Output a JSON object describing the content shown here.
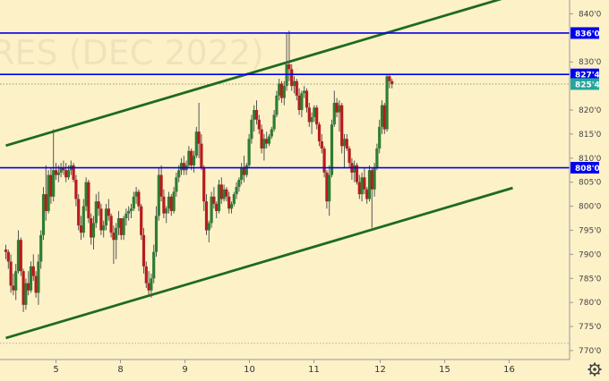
{
  "chart_data": {
    "type": "candlestick",
    "title": "",
    "watermark": "RES (DEC 2022)",
    "y_axis": {
      "position": "right",
      "ylim": [
        768.5,
        842.5
      ],
      "ticks": [
        {
          "value": 840,
          "label": "840'0"
        },
        {
          "value": 830,
          "label": "830'0"
        },
        {
          "value": 820,
          "label": "820'0"
        },
        {
          "value": 815,
          "label": "815'0"
        },
        {
          "value": 810,
          "label": "810'0"
        },
        {
          "value": 805,
          "label": "805'0"
        },
        {
          "value": 800,
          "label": "800'0"
        },
        {
          "value": 795,
          "label": "795'0"
        },
        {
          "value": 790,
          "label": "790'0"
        },
        {
          "value": 785,
          "label": "785'0"
        },
        {
          "value": 780,
          "label": "780'0"
        },
        {
          "value": 775,
          "label": "775'0"
        },
        {
          "value": 770,
          "label": "770'0"
        }
      ]
    },
    "x_axis": {
      "range": [
        0,
        28.3
      ],
      "ticks": [
        {
          "value": 2.8,
          "label": "5"
        },
        {
          "value": 6.4,
          "label": "8"
        },
        {
          "value": 10.0,
          "label": "9"
        },
        {
          "value": 13.6,
          "label": "10"
        },
        {
          "value": 17.2,
          "label": "11"
        },
        {
          "value": 20.9,
          "label": "12"
        },
        {
          "value": 24.5,
          "label": "15"
        },
        {
          "value": 28.1,
          "label": "16"
        }
      ]
    },
    "horizontal_levels": [
      {
        "value": 836.0,
        "label": "836'0",
        "color": "#0000ee"
      },
      {
        "value": 827.4,
        "label": "827'4",
        "color": "#0000ee"
      },
      {
        "value": 808.0,
        "label": "808'0",
        "color": "#0000ee"
      }
    ],
    "last_price": {
      "value": 825.4,
      "label": "825'4",
      "color": "#26a69a"
    },
    "dotted_levels": [
      825.4,
      771.5
    ],
    "trend_lines": [
      {
        "x1": 0,
        "y1": 812.6,
        "x2": 28.3,
        "y2": 843.8,
        "color": "#1e6b1e"
      },
      {
        "x1": 0,
        "y1": 772.6,
        "x2": 28.3,
        "y2": 803.8,
        "color": "#1e6b1e"
      }
    ],
    "colors": {
      "up": "#2e7d32",
      "down": "#b71c1c",
      "wick": "#555555"
    },
    "candles": [
      [
        0.0,
        791.0,
        792.0,
        789.0,
        790.5
      ],
      [
        0.14,
        790.5,
        791.0,
        787.0,
        788.5
      ],
      [
        0.28,
        788.5,
        790.0,
        782.0,
        783.5
      ],
      [
        0.42,
        783.5,
        786.0,
        781.5,
        782.5
      ],
      [
        0.56,
        782.5,
        788.0,
        780.5,
        786.5
      ],
      [
        0.7,
        786.5,
        795.0,
        786.0,
        793.0
      ],
      [
        0.84,
        793.0,
        793.5,
        785.5,
        786.5
      ],
      [
        0.98,
        786.5,
        787.0,
        778.0,
        779.5
      ],
      [
        1.12,
        779.5,
        785.0,
        778.5,
        784.0
      ],
      [
        1.26,
        784.0,
        786.5,
        781.5,
        782.5
      ],
      [
        1.4,
        782.5,
        788.5,
        782.0,
        787.5
      ],
      [
        1.54,
        787.5,
        790.0,
        784.5,
        785.5
      ],
      [
        1.68,
        785.5,
        786.5,
        781.0,
        782.0
      ],
      [
        1.82,
        782.0,
        790.0,
        779.5,
        788.5
      ],
      [
        1.96,
        788.5,
        795.0,
        787.0,
        794.0
      ],
      [
        2.1,
        794.0,
        804.0,
        793.0,
        802.5
      ],
      [
        2.24,
        802.5,
        808.5,
        797.0,
        799.0
      ],
      [
        2.38,
        799.0,
        807.5,
        798.5,
        806.5
      ],
      [
        2.52,
        806.5,
        808.0,
        800.5,
        802.0
      ],
      [
        2.66,
        802.0,
        816.0,
        801.0,
        807.5
      ],
      [
        2.8,
        807.5,
        809.0,
        805.5,
        806.5
      ],
      [
        2.94,
        806.5,
        808.5,
        805.0,
        807.0
      ],
      [
        3.08,
        807.0,
        809.0,
        806.0,
        808.0
      ],
      [
        3.22,
        808.0,
        809.5,
        806.5,
        807.5
      ],
      [
        3.36,
        807.5,
        809.0,
        805.0,
        806.0
      ],
      [
        3.5,
        806.0,
        808.5,
        805.5,
        807.5
      ],
      [
        3.64,
        807.5,
        809.5,
        806.5,
        808.5
      ],
      [
        3.78,
        808.5,
        809.0,
        805.0,
        805.5
      ],
      [
        3.92,
        805.5,
        806.5,
        800.0,
        801.5
      ],
      [
        4.06,
        801.5,
        802.5,
        795.0,
        796.0
      ],
      [
        4.2,
        796.0,
        798.0,
        793.0,
        794.5
      ],
      [
        4.34,
        794.5,
        801.5,
        793.5,
        800.0
      ],
      [
        4.48,
        800.0,
        806.0,
        799.0,
        805.0
      ],
      [
        4.62,
        805.0,
        805.5,
        796.5,
        797.5
      ],
      [
        4.76,
        797.5,
        798.5,
        792.0,
        793.5
      ],
      [
        4.9,
        793.5,
        798.0,
        791.0,
        796.5
      ],
      [
        5.04,
        796.5,
        802.5,
        795.5,
        801.0
      ],
      [
        5.18,
        801.0,
        803.0,
        798.0,
        799.5
      ],
      [
        5.32,
        799.5,
        800.5,
        794.0,
        795.0
      ],
      [
        5.46,
        795.0,
        797.0,
        793.5,
        796.0
      ],
      [
        5.6,
        796.0,
        800.5,
        795.0,
        799.5
      ],
      [
        5.74,
        799.5,
        801.5,
        797.0,
        798.0
      ],
      [
        5.88,
        798.0,
        798.5,
        793.5,
        794.5
      ],
      [
        6.02,
        794.5,
        796.0,
        788.0,
        793.0
      ],
      [
        6.16,
        793.0,
        796.5,
        789.0,
        795.5
      ],
      [
        6.3,
        795.5,
        799.0,
        794.0,
        797.5
      ],
      [
        6.44,
        797.5,
        797.5,
        793.0,
        794.0
      ],
      [
        6.58,
        794.0,
        798.0,
        793.0,
        797.5
      ],
      [
        6.72,
        797.5,
        799.5,
        796.0,
        798.5
      ],
      [
        6.86,
        798.5,
        800.0,
        797.0,
        799.0
      ],
      [
        7.0,
        799.0,
        800.5,
        797.5,
        799.5
      ],
      [
        7.14,
        799.5,
        803.0,
        799.0,
        802.0
      ],
      [
        7.28,
        802.0,
        804.0,
        800.5,
        803.0
      ],
      [
        7.42,
        803.0,
        803.5,
        799.0,
        800.0
      ],
      [
        7.56,
        800.0,
        800.5,
        793.0,
        794.0
      ],
      [
        7.7,
        794.0,
        795.5,
        786.0,
        787.5
      ],
      [
        7.84,
        787.5,
        788.5,
        783.0,
        784.0
      ],
      [
        7.98,
        784.0,
        786.5,
        781.5,
        782.5
      ],
      [
        8.12,
        782.5,
        786.0,
        781.0,
        785.0
      ],
      [
        8.26,
        785.0,
        792.0,
        784.0,
        790.5
      ],
      [
        8.4,
        790.5,
        800.0,
        789.5,
        798.0
      ],
      [
        8.54,
        798.0,
        808.0,
        797.0,
        806.5
      ],
      [
        8.68,
        806.5,
        808.5,
        801.0,
        802.0
      ],
      [
        8.82,
        802.0,
        803.5,
        797.5,
        798.5
      ],
      [
        8.96,
        798.5,
        800.0,
        796.5,
        799.5
      ],
      [
        9.1,
        799.5,
        803.0,
        798.5,
        802.0
      ],
      [
        9.24,
        802.0,
        802.5,
        798.0,
        799.0
      ],
      [
        9.38,
        799.0,
        804.0,
        798.5,
        803.0
      ],
      [
        9.52,
        803.0,
        807.0,
        802.0,
        806.0
      ],
      [
        9.66,
        806.0,
        808.5,
        805.0,
        807.5
      ],
      [
        9.8,
        807.5,
        810.0,
        806.5,
        809.0
      ],
      [
        9.94,
        809.0,
        810.5,
        806.5,
        807.5
      ],
      [
        10.08,
        807.5,
        809.5,
        806.5,
        808.5
      ],
      [
        10.22,
        808.5,
        812.5,
        808.0,
        811.5
      ],
      [
        10.36,
        811.5,
        812.0,
        807.5,
        808.5
      ],
      [
        10.5,
        808.5,
        811.5,
        807.0,
        810.5
      ],
      [
        10.64,
        810.5,
        816.5,
        810.0,
        815.5
      ],
      [
        10.78,
        815.5,
        821.5,
        810.0,
        813.0
      ],
      [
        10.92,
        813.0,
        815.0,
        807.5,
        808.0
      ],
      [
        11.06,
        808.0,
        808.5,
        799.0,
        801.0
      ],
      [
        11.2,
        801.0,
        802.5,
        794.0,
        795.0
      ],
      [
        11.34,
        795.0,
        797.0,
        792.5,
        796.5
      ],
      [
        11.48,
        796.5,
        803.0,
        795.5,
        802.0
      ],
      [
        11.62,
        802.0,
        804.0,
        799.5,
        800.5
      ],
      [
        11.76,
        800.5,
        801.0,
        797.5,
        799.0
      ],
      [
        11.9,
        799.0,
        805.5,
        798.5,
        804.5
      ],
      [
        12.04,
        804.5,
        806.0,
        800.5,
        801.5
      ],
      [
        12.18,
        801.5,
        804.5,
        801.0,
        803.5
      ],
      [
        12.32,
        803.5,
        804.0,
        801.0,
        802.0
      ],
      [
        12.46,
        802.0,
        803.0,
        798.5,
        799.5
      ],
      [
        12.6,
        799.5,
        801.0,
        798.5,
        800.5
      ],
      [
        12.74,
        800.5,
        803.0,
        800.0,
        802.5
      ],
      [
        12.88,
        802.5,
        805.0,
        801.5,
        804.0
      ],
      [
        13.02,
        804.0,
        806.0,
        803.0,
        805.5
      ],
      [
        13.16,
        805.5,
        809.0,
        804.5,
        808.0
      ],
      [
        13.3,
        808.0,
        810.5,
        805.0,
        806.5
      ],
      [
        13.44,
        806.5,
        809.0,
        806.0,
        808.5
      ],
      [
        13.58,
        808.5,
        815.0,
        808.0,
        814.0
      ],
      [
        13.72,
        814.0,
        819.0,
        813.0,
        818.0
      ],
      [
        13.86,
        818.0,
        821.0,
        815.5,
        820.0
      ],
      [
        14.0,
        820.0,
        822.0,
        817.0,
        818.0
      ],
      [
        14.14,
        818.0,
        819.0,
        815.0,
        816.0
      ],
      [
        14.28,
        816.0,
        817.0,
        811.0,
        812.0
      ],
      [
        14.42,
        812.0,
        815.0,
        809.5,
        814.0
      ],
      [
        14.56,
        814.0,
        815.5,
        812.0,
        813.0
      ],
      [
        14.7,
        813.0,
        815.0,
        812.5,
        814.5
      ],
      [
        14.84,
        814.5,
        816.5,
        814.0,
        816.0
      ],
      [
        14.98,
        816.0,
        820.0,
        815.5,
        819.0
      ],
      [
        15.12,
        819.0,
        824.0,
        818.5,
        823.0
      ],
      [
        15.26,
        823.0,
        826.5,
        822.0,
        825.5
      ],
      [
        15.4,
        825.5,
        826.0,
        821.5,
        822.5
      ],
      [
        15.54,
        822.5,
        826.0,
        821.0,
        825.0
      ],
      [
        15.68,
        825.0,
        836.0,
        824.0,
        829.5
      ],
      [
        15.82,
        829.5,
        836.5,
        826.0,
        828.5
      ],
      [
        15.96,
        828.5,
        829.5,
        824.0,
        825.0
      ],
      [
        16.1,
        825.0,
        827.0,
        823.5,
        826.0
      ],
      [
        16.24,
        826.0,
        826.5,
        822.0,
        823.0
      ],
      [
        16.38,
        823.0,
        824.5,
        819.0,
        820.0
      ],
      [
        16.52,
        820.0,
        824.0,
        818.5,
        823.5
      ],
      [
        16.66,
        823.5,
        825.0,
        822.5,
        824.0
      ],
      [
        16.8,
        824.0,
        824.5,
        819.5,
        820.5
      ],
      [
        16.94,
        820.5,
        821.5,
        816.5,
        817.5
      ],
      [
        17.08,
        817.5,
        819.5,
        815.0,
        818.5
      ],
      [
        17.22,
        818.5,
        821.0,
        817.5,
        820.5
      ],
      [
        17.36,
        820.5,
        821.0,
        816.0,
        817.0
      ],
      [
        17.5,
        817.0,
        817.5,
        812.5,
        813.5
      ],
      [
        17.64,
        813.5,
        815.0,
        811.0,
        812.0
      ],
      [
        17.78,
        812.0,
        812.5,
        806.0,
        807.0
      ],
      [
        17.92,
        807.0,
        807.5,
        799.5,
        801.0
      ],
      [
        18.06,
        801.0,
        808.5,
        798.0,
        806.5
      ],
      [
        18.2,
        806.5,
        818.0,
        806.0,
        817.0
      ],
      [
        18.34,
        817.0,
        824.0,
        816.5,
        821.5
      ],
      [
        18.48,
        821.5,
        822.5,
        818.5,
        819.5
      ],
      [
        18.62,
        819.5,
        822.0,
        815.5,
        821.0
      ],
      [
        18.76,
        821.0,
        821.5,
        811.0,
        812.5
      ],
      [
        18.9,
        812.5,
        815.0,
        808.0,
        814.0
      ],
      [
        19.04,
        814.0,
        815.0,
        811.5,
        812.0
      ],
      [
        19.18,
        812.0,
        812.5,
        808.0,
        809.0
      ],
      [
        19.32,
        809.0,
        810.0,
        805.5,
        807.0
      ],
      [
        19.46,
        807.0,
        809.5,
        805.0,
        808.5
      ],
      [
        19.6,
        808.5,
        809.0,
        804.5,
        805.0
      ],
      [
        19.74,
        805.0,
        806.5,
        801.5,
        802.5
      ],
      [
        19.88,
        802.5,
        807.0,
        801.0,
        806.0
      ],
      [
        20.02,
        806.0,
        808.0,
        802.5,
        803.5
      ],
      [
        20.16,
        803.5,
        804.0,
        800.5,
        801.5
      ],
      [
        20.3,
        801.5,
        808.5,
        801.0,
        807.5
      ],
      [
        20.44,
        807.5,
        808.0,
        795.5,
        803.5
      ],
      [
        20.58,
        803.5,
        809.0,
        802.0,
        808.0
      ],
      [
        20.72,
        808.0,
        813.0,
        807.5,
        812.0
      ],
      [
        20.86,
        812.0,
        818.0,
        811.0,
        816.5
      ],
      [
        21.0,
        816.5,
        822.0,
        815.0,
        821.0
      ],
      [
        21.14,
        821.0,
        821.5,
        815.0,
        816.0
      ],
      [
        21.28,
        816.0,
        827.5,
        815.5,
        827.0
      ],
      [
        21.42,
        827.0,
        827.5,
        824.5,
        826.0
      ],
      [
        21.56,
        826.0,
        826.5,
        824.5,
        825.4
      ]
    ]
  }
}
